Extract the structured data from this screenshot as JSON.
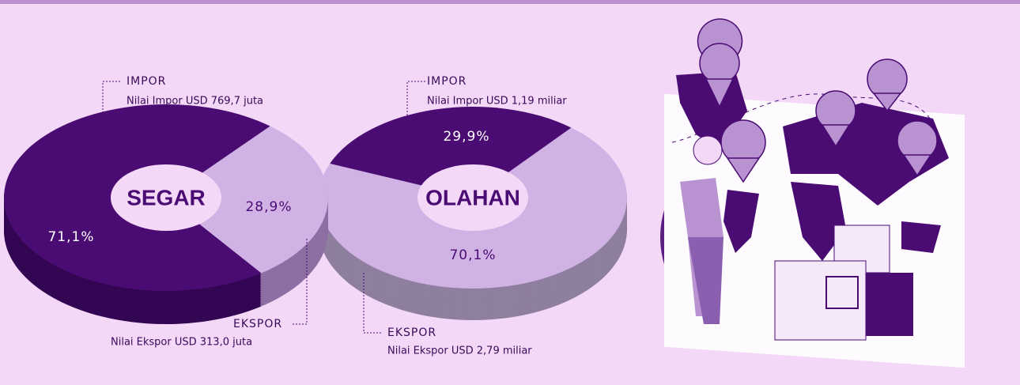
{
  "chart_data": [
    {
      "type": "pie",
      "title": "SEGAR",
      "categories": [
        "IMPOR",
        "EKSPOR"
      ],
      "values": [
        71.1,
        28.9
      ],
      "value_labels": [
        "71,1%",
        "28,9%"
      ],
      "colors": [
        "#4a0b73",
        "#d0b2e4"
      ],
      "annotations": [
        "Nilai Impor USD 769,7 juta",
        "Nilai Ekspor USD 313,0 juta"
      ]
    },
    {
      "type": "pie",
      "title": "OLAHAN",
      "categories": [
        "IMPOR",
        "EKSPOR"
      ],
      "values": [
        29.9,
        70.1
      ],
      "value_labels": [
        "29,9%",
        "70,1%"
      ],
      "colors": [
        "#4a0b73",
        "#d0b2e4"
      ],
      "annotations": [
        "Nilai Impor USD 1,19 miliar",
        "Nilai Ekspor USD 2,79 miliar"
      ]
    }
  ]
}
